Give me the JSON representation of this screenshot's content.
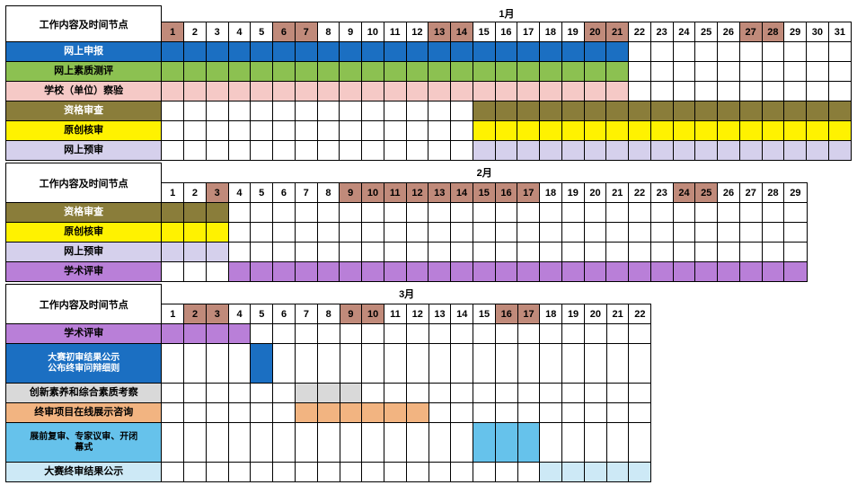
{
  "header_label": "工作内容及时间节点",
  "colors": {
    "weekend": "#c08a7a",
    "blue": "#1b6fc2",
    "green": "#8cc151",
    "pink": "#f5c9c6",
    "olive": "#8a7d3a",
    "yellow": "#fff200",
    "lav": "#d5d0ec",
    "purple": "#b97fd8",
    "gray": "#d9d9d9",
    "peach": "#f2b481",
    "sky": "#66c2eb",
    "sky2": "#cde9f6",
    "white": "#ffffff",
    "text_white": "#ffffff",
    "text_black": "#000000"
  },
  "months": [
    {
      "title": "1月",
      "ndays": 31,
      "weekends": [
        1,
        6,
        7,
        13,
        14,
        20,
        21,
        27,
        28
      ],
      "tasks": [
        {
          "label": "网上申报",
          "bg": "blue",
          "fg": "text_white",
          "fill": "blue",
          "range": [
            1,
            21
          ]
        },
        {
          "label": "网上素质测评",
          "bg": "green",
          "fg": "text_black",
          "fill": "green",
          "range": [
            1,
            21
          ]
        },
        {
          "label": "学校（单位）察验",
          "bg": "pink",
          "fg": "text_black",
          "fill": "pink",
          "range": [
            1,
            21
          ]
        },
        {
          "label": "资格审查",
          "bg": "olive",
          "fg": "text_white",
          "fill": "olive",
          "range": [
            15,
            31
          ]
        },
        {
          "label": "原创核审",
          "bg": "yellow",
          "fg": "text_black",
          "fill": "yellow",
          "range": [
            15,
            31
          ]
        },
        {
          "label": "网上预审",
          "bg": "lav",
          "fg": "text_black",
          "fill": "lav",
          "range": [
            15,
            31
          ]
        }
      ]
    },
    {
      "title": "2月",
      "ndays": 29,
      "weekends": [
        3,
        9,
        10,
        11,
        12,
        13,
        14,
        15,
        16,
        17,
        24,
        25
      ],
      "tasks": [
        {
          "label": "资格审查",
          "bg": "olive",
          "fg": "text_white",
          "fill": "olive",
          "range": [
            1,
            3
          ]
        },
        {
          "label": "原创核审",
          "bg": "yellow",
          "fg": "text_black",
          "fill": "yellow",
          "range": [
            1,
            3
          ]
        },
        {
          "label": "网上预审",
          "bg": "lav",
          "fg": "text_black",
          "fill": "lav",
          "range": [
            1,
            3
          ]
        },
        {
          "label": "学术评审",
          "bg": "purple",
          "fg": "text_black",
          "fill": "purple",
          "range": [
            4,
            29
          ]
        }
      ]
    },
    {
      "title": "3月",
      "ndays": 22,
      "weekends": [
        2,
        3,
        9,
        10,
        16,
        17
      ],
      "tasks": [
        {
          "label": "学术评审",
          "bg": "purple",
          "fg": "text_black",
          "fill": "purple",
          "range": [
            1,
            4
          ]
        },
        {
          "label": "大赛初审结果公示\n公布终审问辩细则",
          "bg": "blue",
          "fg": "text_white",
          "fill": "blue",
          "range": [
            5,
            5
          ],
          "h": 2
        },
        {
          "label": "创新素养和综合素质考察",
          "bg": "gray",
          "fg": "text_black",
          "fill": "gray",
          "range": [
            7,
            9
          ]
        },
        {
          "label": "终审项目在线展示咨询",
          "bg": "peach",
          "fg": "text_black",
          "fill": "peach",
          "range": [
            7,
            12
          ]
        },
        {
          "label": "展前复审、专家议审、开闭\n幕式",
          "bg": "sky",
          "fg": "text_black",
          "fill": "sky",
          "range": [
            15,
            17
          ],
          "h": 2
        },
        {
          "label": "大赛终审结果公示",
          "bg": "sky2",
          "fg": "text_black",
          "fill": "sky2",
          "range": [
            18,
            22
          ]
        }
      ]
    }
  ]
}
